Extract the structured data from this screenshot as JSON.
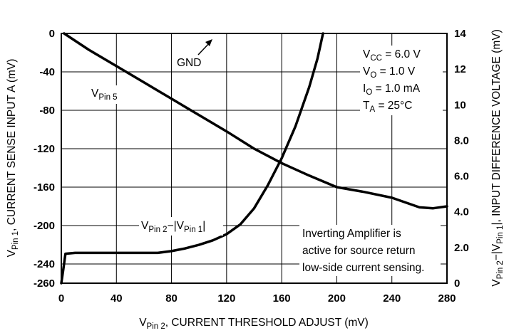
{
  "chart_data": {
    "type": "line",
    "grid": true,
    "x_axis": {
      "label_main": "V",
      "label_sub": "Pin 2",
      "label_rest": ", CURRENT THRESHOLD ADJUST (mV)",
      "lim": [
        0,
        280
      ],
      "ticks": [
        "0",
        "40",
        "80",
        "120",
        "160",
        "200",
        "240",
        "280"
      ],
      "tick_values": [
        0,
        40,
        80,
        120,
        160,
        200,
        240,
        280
      ]
    },
    "y_left": {
      "label_main": "V",
      "label_sub": "Pin 1",
      "label_rest": ", CURRENT SENSE INPUT A (mV)",
      "lim": [
        -260,
        0
      ],
      "ticks": [
        "0",
        "-40",
        "-80",
        "-120",
        "-160",
        "-200",
        "-240",
        "-260"
      ],
      "tick_values": [
        0,
        -40,
        -80,
        -120,
        -160,
        -200,
        -240,
        -260
      ]
    },
    "y_right": {
      "label_main": "V",
      "label_sub1": "Pin 2",
      "label_mid": "−|V",
      "label_sub2": "Pin 1",
      "label_rest": "|, INPUT DIFFERENCE VOLTAGE (mV)",
      "lim": [
        0,
        14
      ],
      "ticks": [
        "14",
        "12",
        "10",
        "8.0",
        "6.0",
        "4.0",
        "2.0",
        "0"
      ],
      "tick_values": [
        14,
        12,
        10,
        8,
        6,
        4,
        2,
        0
      ]
    },
    "series": [
      {
        "name": "VPin 5",
        "label_main": "V",
        "label_sub": "Pin 5",
        "axis": "left",
        "x": [
          2,
          20,
          40,
          60,
          80,
          100,
          120,
          140,
          160,
          180,
          200,
          220,
          240,
          260,
          270,
          280
        ],
        "y": [
          0,
          -17,
          -34,
          -51,
          -68,
          -85,
          -102,
          -120,
          -135,
          -148,
          -160,
          -165,
          -171,
          -181,
          -182,
          -180
        ]
      },
      {
        "name": "VPin 2 − |VPin 1|",
        "label_main": "V",
        "label_sub1": "Pin 2",
        "label_mid": "−|V",
        "label_sub2": "Pin 1",
        "label_end": "|",
        "axis": "right",
        "x": [
          0,
          1.5,
          3,
          10,
          40,
          60,
          70,
          80,
          90,
          100,
          110,
          120,
          130,
          140,
          150,
          160,
          170,
          180,
          186,
          190
        ],
        "y": [
          0.0,
          0.8,
          1.65,
          1.7,
          1.7,
          1.7,
          1.7,
          1.8,
          1.95,
          2.15,
          2.4,
          2.75,
          3.3,
          4.2,
          5.5,
          7.0,
          8.8,
          11.0,
          12.6,
          14.0
        ]
      }
    ],
    "annotations": {
      "gnd": "GND",
      "conditions": [
        {
          "main": "V",
          "sub": "CC",
          "rest": " = 6.0 V"
        },
        {
          "main": "V",
          "sub": "O",
          "rest": " = 1.0 V"
        },
        {
          "main": "I",
          "sub": "O",
          "rest": " = 1.0 mA"
        },
        {
          "main": "T",
          "sub": "A",
          "rest": " = 25°C"
        }
      ],
      "note": [
        "Inverting Amplifier is",
        "active for source return",
        "low-side current sensing."
      ]
    }
  }
}
